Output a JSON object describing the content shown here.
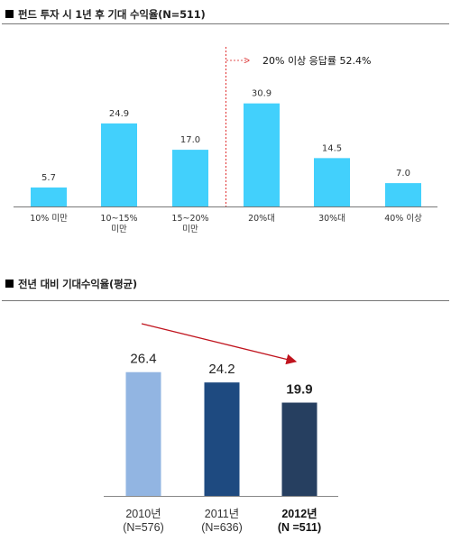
{
  "chart_data": [
    {
      "type": "bar",
      "title": "펀드 투자 시 1년 후 기대 수익율(N=511)",
      "categories": [
        [
          "10% 미만"
        ],
        [
          "10~15%",
          "미만"
        ],
        [
          "15~20%",
          "미만"
        ],
        [
          "20%대"
        ],
        [
          "30%대"
        ],
        [
          "40% 이상"
        ]
      ],
      "values": [
        5.7,
        24.9,
        17.0,
        30.9,
        14.5,
        7.0
      ],
      "value_labels": [
        "5.7",
        "24.9",
        "17.0",
        "30.9",
        "14.5",
        "7.0"
      ],
      "annotation": "20% 이상 응답률 52.4%",
      "color": "#42D0FC",
      "ylim": [
        0,
        35
      ],
      "grid": false
    },
    {
      "type": "bar",
      "title": "전년 대비 기대수익율(평균)",
      "categories": [
        [
          "2010년",
          "(N=576)"
        ],
        [
          "2011년",
          "(N=636)"
        ],
        [
          "2012년",
          "(N =511)"
        ]
      ],
      "values": [
        26.4,
        24.2,
        19.9
      ],
      "value_labels": [
        "26.4",
        "24.2",
        "19.9"
      ],
      "colors": [
        "#92B5E2",
        "#1E4A80",
        "#263F60"
      ],
      "ylim": [
        0,
        32
      ],
      "grid": false
    }
  ]
}
